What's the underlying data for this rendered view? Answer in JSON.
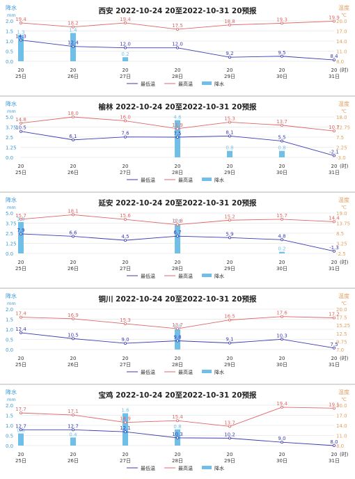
{
  "axis_labels": {
    "left_title": "降水",
    "left_unit": "mm",
    "right_title": "温度",
    "right_unit": "℃",
    "x_unit": "(时)"
  },
  "legend": {
    "min_label": "最低温",
    "max_label": "最高温",
    "precip_label": "降水"
  },
  "colors": {
    "min_line": "#3b3bb3",
    "max_line": "#e06666",
    "precip_bar": "#6fbfe8",
    "left_axis": "#3a9ad9",
    "right_axis": "#e0a060",
    "grid": "#e6e6e6"
  },
  "x_tick_hour": "20",
  "x_categories": [
    "25日",
    "26日",
    "27日",
    "28日",
    "29日",
    "30日",
    "31日"
  ],
  "chart_data": [
    {
      "type": "line",
      "title": "西安 2022-10-24 20至2022-10-31 20预报",
      "left_ticks": [
        "2.0",
        "1.5",
        "1.0",
        "0.5",
        "0.0"
      ],
      "right_ticks": [
        "20.0",
        "17.0",
        "14.0",
        "11.0",
        "8.0"
      ],
      "precip_range": [
        0,
        2
      ],
      "temp_range": [
        8,
        20
      ],
      "series": [
        {
          "name": "最低温",
          "values": [
            14.3,
            12.4,
            12.0,
            12.0,
            9.2,
            9.5,
            8.4
          ]
        },
        {
          "name": "最高温",
          "values": [
            19.4,
            18.2,
            19.4,
            17.5,
            18.8,
            19.3,
            19.9
          ]
        },
        {
          "name": "降水",
          "values": [
            1.3,
            1.4,
            0.2,
            0.0,
            0.0,
            0.0,
            0.0
          ]
        }
      ]
    },
    {
      "type": "line",
      "title": "榆林 2022-10-24 20至2022-10-31 20预报",
      "left_ticks": [
        "5.0",
        "3.75",
        "2.5",
        "1.25",
        "0.0"
      ],
      "right_ticks": [
        "18.0",
        "12.75",
        "7.5",
        "2.25",
        "-3.0"
      ],
      "precip_range": [
        0,
        5
      ],
      "temp_range": [
        -3,
        18
      ],
      "series": [
        {
          "name": "最低温",
          "values": [
            10.5,
            6.1,
            7.6,
            7.5,
            8.1,
            5.5,
            -2.1
          ]
        },
        {
          "name": "最高温",
          "values": [
            14.8,
            18.0,
            16.0,
            11.9,
            15.3,
            13.7,
            10.7
          ]
        },
        {
          "name": "降水",
          "values": [
            0.0,
            0.0,
            0.0,
            4.6,
            0.8,
            0.8,
            0.0
          ]
        }
      ]
    },
    {
      "type": "line",
      "title": "延安 2022-10-24 20至2022-10-31 20预报",
      "left_ticks": [
        "5.0",
        "3.75",
        "2.5",
        "1.25",
        "0.0"
      ],
      "right_ticks": [
        "19.0",
        "13.75",
        "8.5",
        "3.25",
        "-2.5"
      ],
      "precip_range": [
        0,
        5
      ],
      "temp_range": [
        -2.5,
        19
      ],
      "series": [
        {
          "name": "最低温",
          "values": [
            7.9,
            6.6,
            4.5,
            6.7,
            5.9,
            4.8,
            -1.3
          ]
        },
        {
          "name": "最高温",
          "values": [
            15.7,
            18.1,
            15.6,
            12.8,
            15.2,
            15.7,
            14.4
          ]
        },
        {
          "name": "降水",
          "values": [
            3.9,
            0.0,
            0.0,
            3.6,
            0.0,
            0.2,
            0.0
          ]
        }
      ]
    },
    {
      "type": "line",
      "title": "铜川 2022-10-24 20至2022-10-31 20预报",
      "left_ticks": [
        "2.0",
        "1.5",
        "1.0",
        "0.5",
        "0.0"
      ],
      "right_ticks": [
        "20.0",
        "17.5",
        "15.25",
        "12.5",
        "9.75",
        "7.0"
      ],
      "precip_range": [
        0,
        2
      ],
      "temp_range": [
        7,
        20
      ],
      "series": [
        {
          "name": "最低温",
          "values": [
            12.4,
            10.5,
            9.0,
            9.8,
            9.1,
            10.3,
            7.5
          ]
        },
        {
          "name": "最高温",
          "values": [
            17.4,
            16.9,
            15.3,
            13.7,
            16.5,
            17.6,
            17.2
          ]
        },
        {
          "name": "降水",
          "values": [
            0.0,
            0.0,
            0.0,
            1.0,
            0.0,
            0.0,
            0.0
          ]
        }
      ]
    },
    {
      "type": "line",
      "title": "宝鸡 2022-10-24 20至2022-10-31 20预报",
      "left_ticks": [
        "2.0",
        "1.5",
        "1.0",
        "0.5",
        "0.0"
      ],
      "right_ticks": [
        "20.0",
        "17.0",
        "14.0",
        "11.0",
        "8.0"
      ],
      "precip_range": [
        0,
        2
      ],
      "temp_range": [
        8,
        20
      ],
      "series": [
        {
          "name": "最低温",
          "values": [
            12.7,
            12.7,
            12.1,
            10.3,
            10.2,
            9.0,
            8.0
          ]
        },
        {
          "name": "最高温",
          "values": [
            17.7,
            17.1,
            14.9,
            15.4,
            13.7,
            19.4,
            19.1
          ]
        },
        {
          "name": "降水",
          "values": [
            0.6,
            0.4,
            1.6,
            0.8,
            0.0,
            0.0,
            0.0
          ]
        }
      ]
    }
  ]
}
